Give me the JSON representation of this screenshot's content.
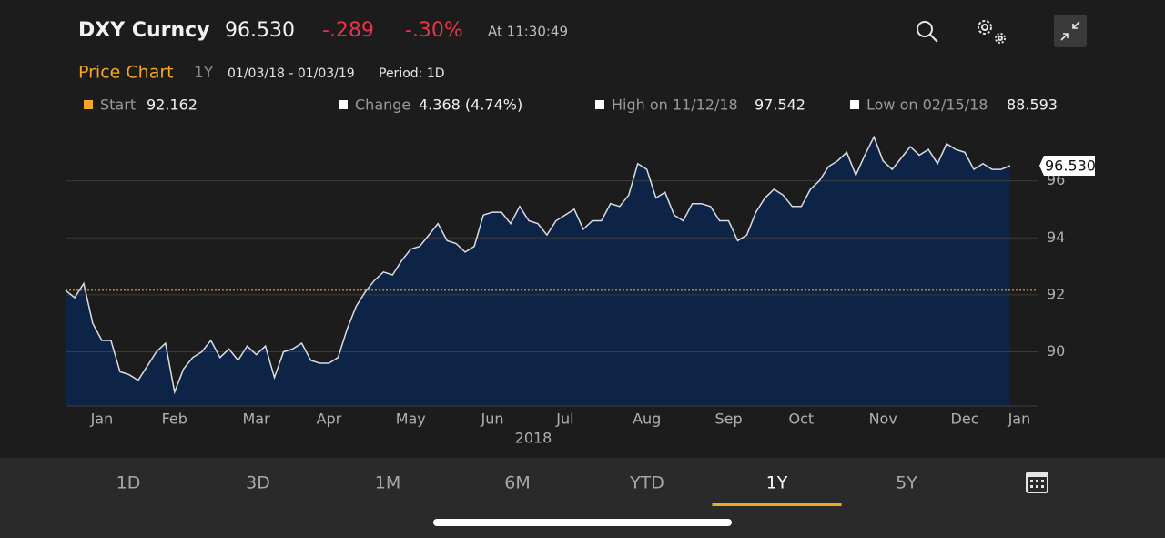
{
  "header": {
    "ticker": "DXY Curncy",
    "price": "96.530",
    "change": "-.289",
    "change_pct": "-.30%",
    "time": "At 11:30:49"
  },
  "subheader": {
    "title": "Price Chart",
    "range": "1Y",
    "dates": "01/03/18 - 01/03/19",
    "period": "Period: 1D"
  },
  "stats": {
    "start_label": "Start",
    "start": 92.162,
    "change_label": "Change",
    "change": "4.368 (4.74%)",
    "high_label": "High on 11/12/18",
    "high": 97.542,
    "low_label": "Low on 02/15/18",
    "low": 88.593
  },
  "chart_data": {
    "type": "area",
    "color": "#d9dde3",
    "fill": "#0e2447",
    "categories": [
      null,
      null,
      null,
      null,
      "Jan",
      null,
      null,
      null,
      null,
      null,
      null,
      null,
      "Feb",
      null,
      null,
      null,
      null,
      null,
      null,
      null,
      null,
      "Mar",
      null,
      null,
      null,
      null,
      null,
      null,
      null,
      "Apr",
      null,
      null,
      null,
      null,
      null,
      null,
      null,
      null,
      "May",
      null,
      null,
      null,
      null,
      null,
      null,
      null,
      null,
      "Jun",
      null,
      null,
      null,
      null,
      null,
      null,
      null,
      "Jul",
      null,
      null,
      null,
      null,
      null,
      null,
      null,
      null,
      "Aug",
      null,
      null,
      null,
      null,
      null,
      null,
      null,
      null,
      "Sep",
      null,
      null,
      null,
      null,
      null,
      null,
      null,
      "Oct",
      null,
      null,
      null,
      null,
      null,
      null,
      null,
      null,
      "Nov",
      null,
      null,
      null,
      null,
      null,
      null,
      null,
      null,
      "Dec",
      null,
      null,
      null,
      null,
      null,
      "Jan"
    ],
    "values": [
      92.16,
      91.9,
      92.4,
      91.0,
      90.4,
      90.4,
      89.3,
      89.2,
      89.0,
      89.5,
      90.0,
      90.3,
      88.59,
      89.4,
      89.8,
      90.0,
      90.4,
      89.8,
      90.1,
      89.7,
      90.2,
      89.9,
      90.2,
      89.1,
      90.0,
      90.1,
      90.3,
      89.7,
      89.6,
      89.6,
      89.8,
      90.8,
      91.6,
      92.1,
      92.5,
      92.8,
      92.7,
      93.2,
      93.6,
      93.7,
      94.1,
      94.5,
      93.9,
      93.8,
      93.5,
      93.7,
      94.8,
      94.9,
      94.9,
      94.5,
      95.1,
      94.6,
      94.5,
      94.1,
      94.6,
      94.8,
      95.0,
      94.3,
      94.6,
      94.6,
      95.2,
      95.1,
      95.5,
      96.6,
      96.4,
      95.4,
      95.6,
      94.8,
      94.6,
      95.2,
      95.2,
      95.1,
      94.6,
      94.6,
      93.9,
      94.1,
      94.9,
      95.4,
      95.7,
      95.5,
      95.1,
      95.1,
      95.7,
      96.0,
      96.5,
      96.7,
      97.0,
      96.2,
      96.9,
      97.54,
      96.7,
      96.4,
      96.8,
      97.2,
      96.9,
      97.1,
      96.6,
      97.3,
      97.1,
      97.0,
      96.4,
      96.6,
      96.4,
      96.4,
      96.53,
      null
    ],
    "year_label": "2018",
    "ylim": [
      88.1,
      98
    ],
    "yticks": [
      90,
      92,
      94,
      96
    ],
    "grid": true
  },
  "tabs": [
    "1D",
    "3D",
    "1M",
    "6M",
    "YTD",
    "1Y",
    "5Y"
  ],
  "active_tab": 5
}
